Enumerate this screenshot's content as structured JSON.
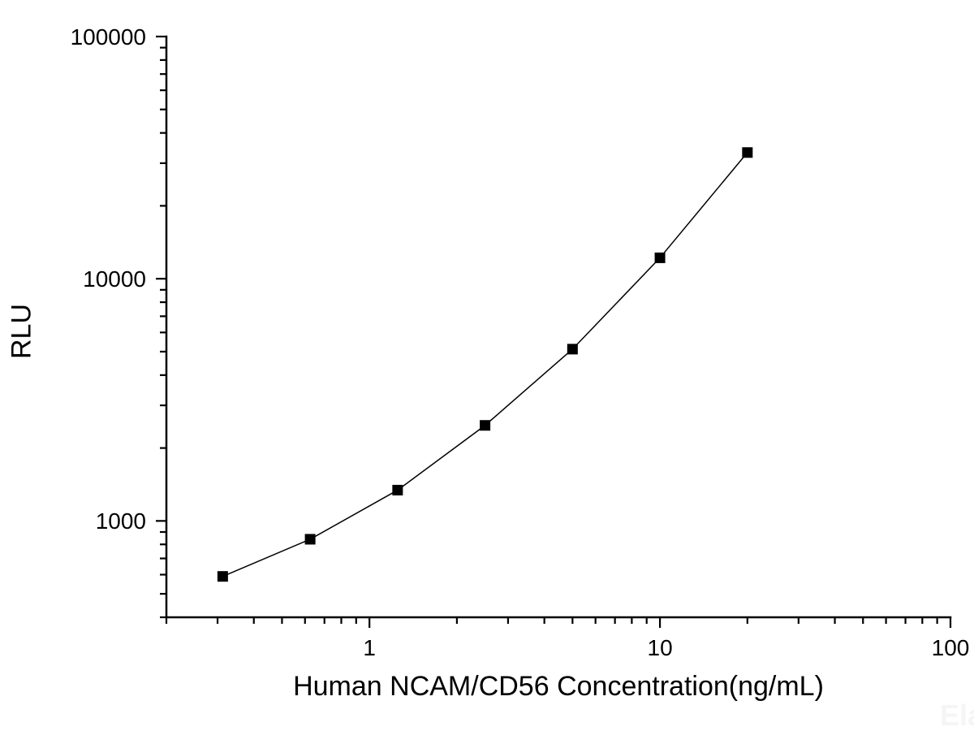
{
  "chart_data": {
    "type": "line",
    "title": "",
    "xlabel": "Human NCAM/CD56 Concentration(ng/mL)",
    "ylabel": "RLU",
    "x_scale": "log",
    "y_scale": "log",
    "xlim": [
      0.2,
      100
    ],
    "ylim": [
      400,
      100000
    ],
    "grid": false,
    "legend": "none",
    "x_ticks": [
      {
        "value": 1,
        "label": "1"
      },
      {
        "value": 10,
        "label": "10"
      },
      {
        "value": 100,
        "label": "100"
      }
    ],
    "y_ticks": [
      {
        "value": 1000,
        "label": "1000"
      },
      {
        "value": 10000,
        "label": "10000"
      },
      {
        "value": 100000,
        "label": "100000"
      }
    ],
    "series": [
      {
        "marker": "filled-square",
        "line": "solid",
        "color": "#000000",
        "points": [
          {
            "x": 0.3125,
            "y": 590
          },
          {
            "x": 0.625,
            "y": 840
          },
          {
            "x": 1.25,
            "y": 1340
          },
          {
            "x": 2.5,
            "y": 2480
          },
          {
            "x": 5,
            "y": 5120
          },
          {
            "x": 10,
            "y": 12200
          },
          {
            "x": 20,
            "y": 33200
          }
        ]
      }
    ]
  },
  "watermark": {
    "text": "Ela",
    "color": "#f5f5f5"
  }
}
